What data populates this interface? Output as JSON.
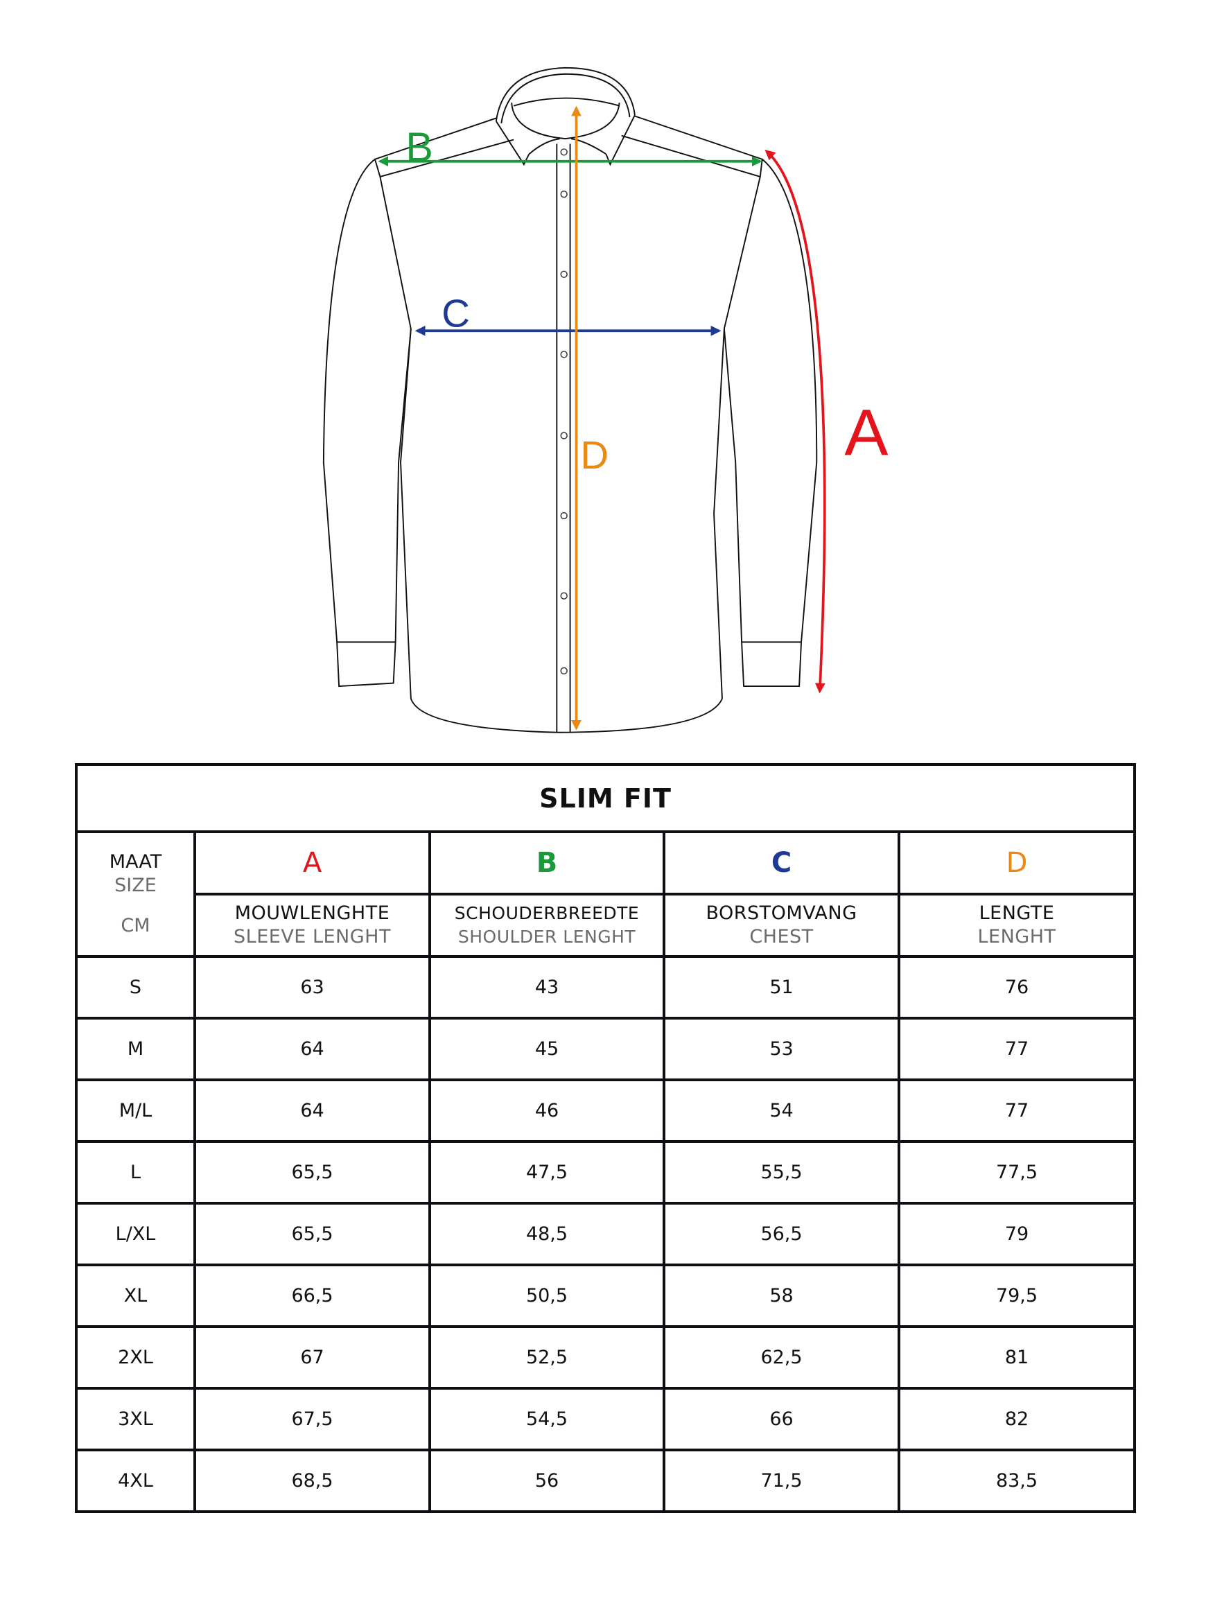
{
  "diagram": {
    "labels": {
      "A": "A",
      "B": "B",
      "C": "C",
      "D": "D"
    },
    "colors": {
      "A": "#e3141b",
      "B": "#1a9a3a",
      "C": "#1e3a94",
      "D": "#ea8a14",
      "outline": "#111111"
    }
  },
  "table": {
    "title": "SLIM FIT",
    "size_header": {
      "nl": "MAAT",
      "en": "SIZE",
      "unit": "CM"
    },
    "columns": [
      {
        "letter": "A",
        "nl": "MOUWLENGHTE",
        "en": "SLEEVE LENGHT"
      },
      {
        "letter": "B",
        "nl": "SCHOUDERBREEDTE",
        "en": "SHOULDER LENGHT"
      },
      {
        "letter": "C",
        "nl": "BORSTOMVANG",
        "en": "CHEST"
      },
      {
        "letter": "D",
        "nl": "LENGTE",
        "en": "LENGHT"
      }
    ],
    "rows": [
      [
        "S",
        "63",
        "43",
        "51",
        "76"
      ],
      [
        "M",
        "64",
        "45",
        "53",
        "77"
      ],
      [
        "M/L",
        "64",
        "46",
        "54",
        "77"
      ],
      [
        "L",
        "65,5",
        "47,5",
        "55,5",
        "77,5"
      ],
      [
        "L/XL",
        "65,5",
        "48,5",
        "56,5",
        "79"
      ],
      [
        "XL",
        "66,5",
        "50,5",
        "58",
        "79,5"
      ],
      [
        "2XL",
        "67",
        "52,5",
        "62,5",
        "81"
      ],
      [
        "3XL",
        "67,5",
        "54,5",
        "66",
        "82"
      ],
      [
        "4XL",
        "68,5",
        "56",
        "71,5",
        "83,5"
      ]
    ]
  }
}
